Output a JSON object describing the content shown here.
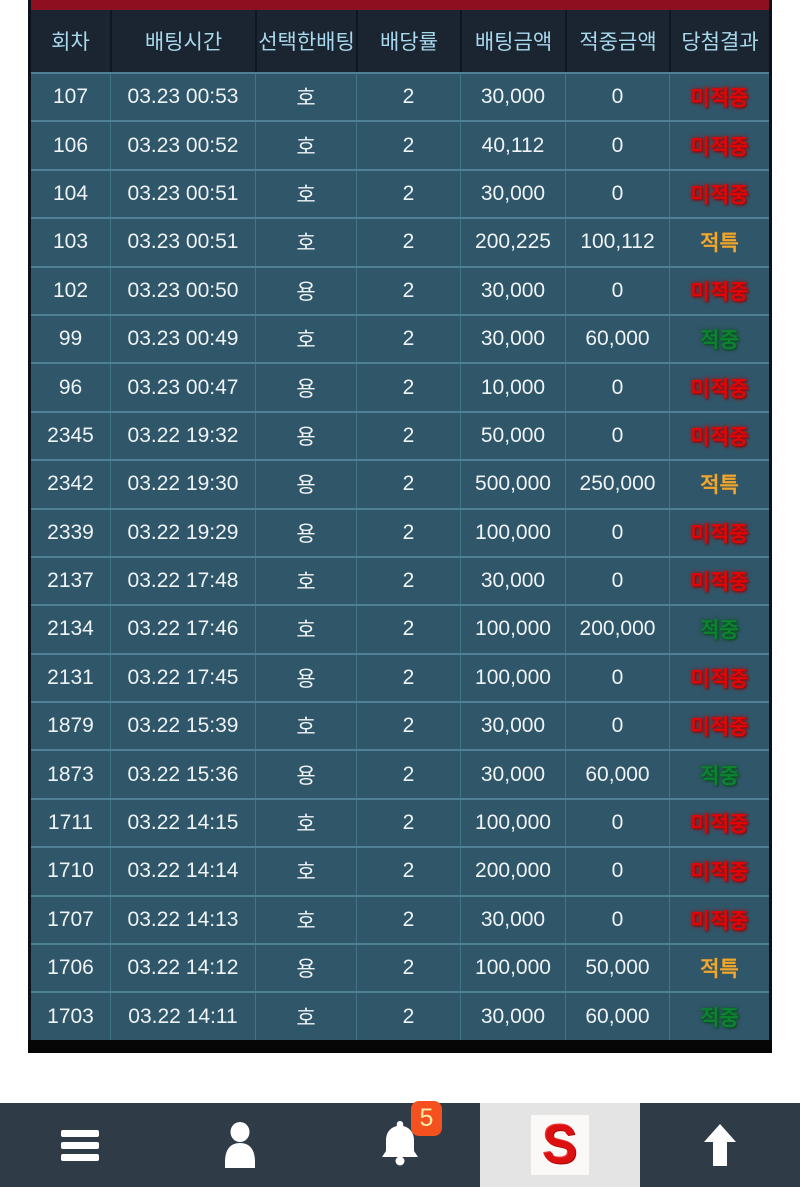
{
  "colors": {
    "top_bar": "#8e0f1f",
    "header_bg": "#1a2531",
    "header_text": "#a8d8ec",
    "row_bg": "#305669",
    "row_text": "#eef3f5",
    "result_miss": "#e30505",
    "result_hit": "#0c842f",
    "result_special": "#f0a72f",
    "nav_bg": "#2f3b47",
    "nav_active_bg": "#e4e4e4",
    "badge_bg": "#f4511e",
    "logo_red": "#dc1010"
  },
  "table": {
    "columns": [
      "회차",
      "배팅시간",
      "선택한배팅",
      "배당률",
      "배팅금액",
      "적중금액",
      "당첨결과"
    ],
    "rows": [
      {
        "round": "107",
        "time": "03.23 00:53",
        "pick": "호",
        "odds": "2",
        "bet": "30,000",
        "win": "0",
        "result": "미적중",
        "result_type": "miss"
      },
      {
        "round": "106",
        "time": "03.23 00:52",
        "pick": "호",
        "odds": "2",
        "bet": "40,112",
        "win": "0",
        "result": "미적중",
        "result_type": "miss"
      },
      {
        "round": "104",
        "time": "03.23 00:51",
        "pick": "호",
        "odds": "2",
        "bet": "30,000",
        "win": "0",
        "result": "미적중",
        "result_type": "miss"
      },
      {
        "round": "103",
        "time": "03.23 00:51",
        "pick": "호",
        "odds": "2",
        "bet": "200,225",
        "win": "100,112",
        "result": "적특",
        "result_type": "special"
      },
      {
        "round": "102",
        "time": "03.23 00:50",
        "pick": "용",
        "odds": "2",
        "bet": "30,000",
        "win": "0",
        "result": "미적중",
        "result_type": "miss"
      },
      {
        "round": "99",
        "time": "03.23 00:49",
        "pick": "호",
        "odds": "2",
        "bet": "30,000",
        "win": "60,000",
        "result": "적중",
        "result_type": "hit"
      },
      {
        "round": "96",
        "time": "03.23 00:47",
        "pick": "용",
        "odds": "2",
        "bet": "10,000",
        "win": "0",
        "result": "미적중",
        "result_type": "miss"
      },
      {
        "round": "2345",
        "time": "03.22 19:32",
        "pick": "용",
        "odds": "2",
        "bet": "50,000",
        "win": "0",
        "result": "미적중",
        "result_type": "miss"
      },
      {
        "round": "2342",
        "time": "03.22 19:30",
        "pick": "용",
        "odds": "2",
        "bet": "500,000",
        "win": "250,000",
        "result": "적특",
        "result_type": "special"
      },
      {
        "round": "2339",
        "time": "03.22 19:29",
        "pick": "용",
        "odds": "2",
        "bet": "100,000",
        "win": "0",
        "result": "미적중",
        "result_type": "miss"
      },
      {
        "round": "2137",
        "time": "03.22 17:48",
        "pick": "호",
        "odds": "2",
        "bet": "30,000",
        "win": "0",
        "result": "미적중",
        "result_type": "miss"
      },
      {
        "round": "2134",
        "time": "03.22 17:46",
        "pick": "호",
        "odds": "2",
        "bet": "100,000",
        "win": "200,000",
        "result": "적중",
        "result_type": "hit"
      },
      {
        "round": "2131",
        "time": "03.22 17:45",
        "pick": "용",
        "odds": "2",
        "bet": "100,000",
        "win": "0",
        "result": "미적중",
        "result_type": "miss"
      },
      {
        "round": "1879",
        "time": "03.22 15:39",
        "pick": "호",
        "odds": "2",
        "bet": "30,000",
        "win": "0",
        "result": "미적중",
        "result_type": "miss"
      },
      {
        "round": "1873",
        "time": "03.22 15:36",
        "pick": "용",
        "odds": "2",
        "bet": "30,000",
        "win": "60,000",
        "result": "적중",
        "result_type": "hit"
      },
      {
        "round": "1711",
        "time": "03.22 14:15",
        "pick": "호",
        "odds": "2",
        "bet": "100,000",
        "win": "0",
        "result": "미적중",
        "result_type": "miss"
      },
      {
        "round": "1710",
        "time": "03.22 14:14",
        "pick": "호",
        "odds": "2",
        "bet": "200,000",
        "win": "0",
        "result": "미적중",
        "result_type": "miss"
      },
      {
        "round": "1707",
        "time": "03.22 14:13",
        "pick": "호",
        "odds": "2",
        "bet": "30,000",
        "win": "0",
        "result": "미적중",
        "result_type": "miss"
      },
      {
        "round": "1706",
        "time": "03.22 14:12",
        "pick": "용",
        "odds": "2",
        "bet": "100,000",
        "win": "50,000",
        "result": "적특",
        "result_type": "special"
      },
      {
        "round": "1703",
        "time": "03.22 14:11",
        "pick": "호",
        "odds": "2",
        "bet": "30,000",
        "win": "60,000",
        "result": "적중",
        "result_type": "hit"
      }
    ]
  },
  "bottom_nav": {
    "notification_badge": "5",
    "logo_letter": "S",
    "items": [
      {
        "name": "menu"
      },
      {
        "name": "profile"
      },
      {
        "name": "notifications"
      },
      {
        "name": "home-logo",
        "active": true
      },
      {
        "name": "scroll-top"
      }
    ]
  }
}
